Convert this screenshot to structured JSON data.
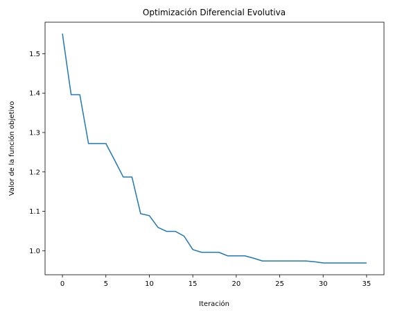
{
  "chart_data": {
    "type": "line",
    "title": "Optimización Diferencial Evolutiva",
    "xlabel": "Iteración",
    "ylabel": "Valor de la función objetivo",
    "xlim": [
      -2,
      37
    ],
    "ylim": [
      0.939,
      1.58
    ],
    "xticks": [
      0,
      5,
      10,
      15,
      20,
      25,
      30,
      35
    ],
    "yticks": [
      1.0,
      1.1,
      1.2,
      1.3,
      1.4,
      1.5
    ],
    "grid": false,
    "line_color": "#1f77b4",
    "series": [
      {
        "x": [
          0,
          1,
          2,
          3,
          4,
          5,
          6,
          7,
          8,
          9,
          10,
          11,
          12,
          13,
          14,
          15,
          16,
          17,
          18,
          19,
          20,
          21,
          22,
          23,
          24,
          25,
          26,
          27,
          28,
          29,
          30,
          31,
          32,
          33,
          34,
          35
        ],
        "y": [
          1.551,
          1.396,
          1.396,
          1.272,
          1.272,
          1.272,
          1.23,
          1.187,
          1.187,
          1.094,
          1.089,
          1.059,
          1.049,
          1.049,
          1.037,
          1.003,
          0.996,
          0.996,
          0.996,
          0.987,
          0.987,
          0.987,
          0.981,
          0.974,
          0.974,
          0.974,
          0.974,
          0.974,
          0.974,
          0.972,
          0.969,
          0.969,
          0.969,
          0.969,
          0.969,
          0.969
        ]
      }
    ]
  }
}
